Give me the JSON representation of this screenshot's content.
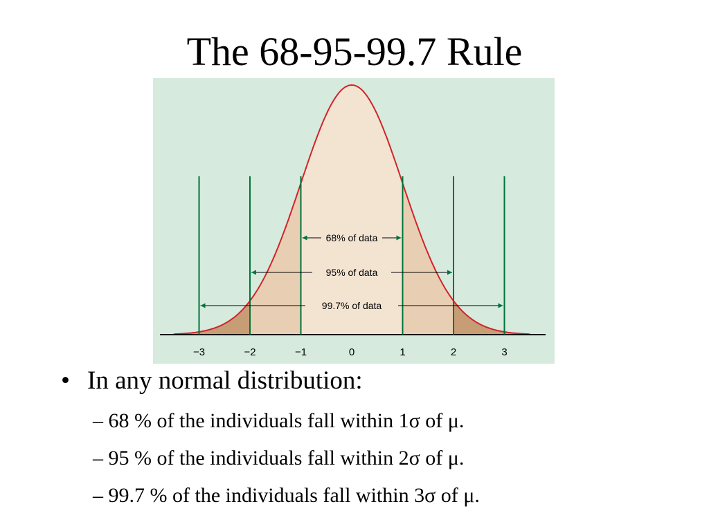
{
  "title": "The 68-95-99.7 Rule",
  "figure": {
    "background_color": "#d6eadd",
    "curve_color": "#d2232a",
    "line_color": "#00733c",
    "center_fill": "#f3e4d2",
    "mid_fill": "#e8cfb4",
    "tail_fill": "#c79d76",
    "ticks": [
      "−3",
      "−2",
      "−1",
      "0",
      "1",
      "2",
      "3"
    ],
    "ranges": [
      {
        "label": "68% of data",
        "sigma": 1
      },
      {
        "label": "95% of data",
        "sigma": 2
      },
      {
        "label": "99.7% of data",
        "sigma": 3
      }
    ]
  },
  "bullets": {
    "main": {
      "marker": "•",
      "text": "In any normal distribution:"
    },
    "sub": [
      "– 68 % of the individuals fall within 1σ of μ.",
      "– 95 % of the individuals fall within 2σ of μ.",
      "– 99.7 % of the individuals fall within 3σ of μ."
    ]
  }
}
